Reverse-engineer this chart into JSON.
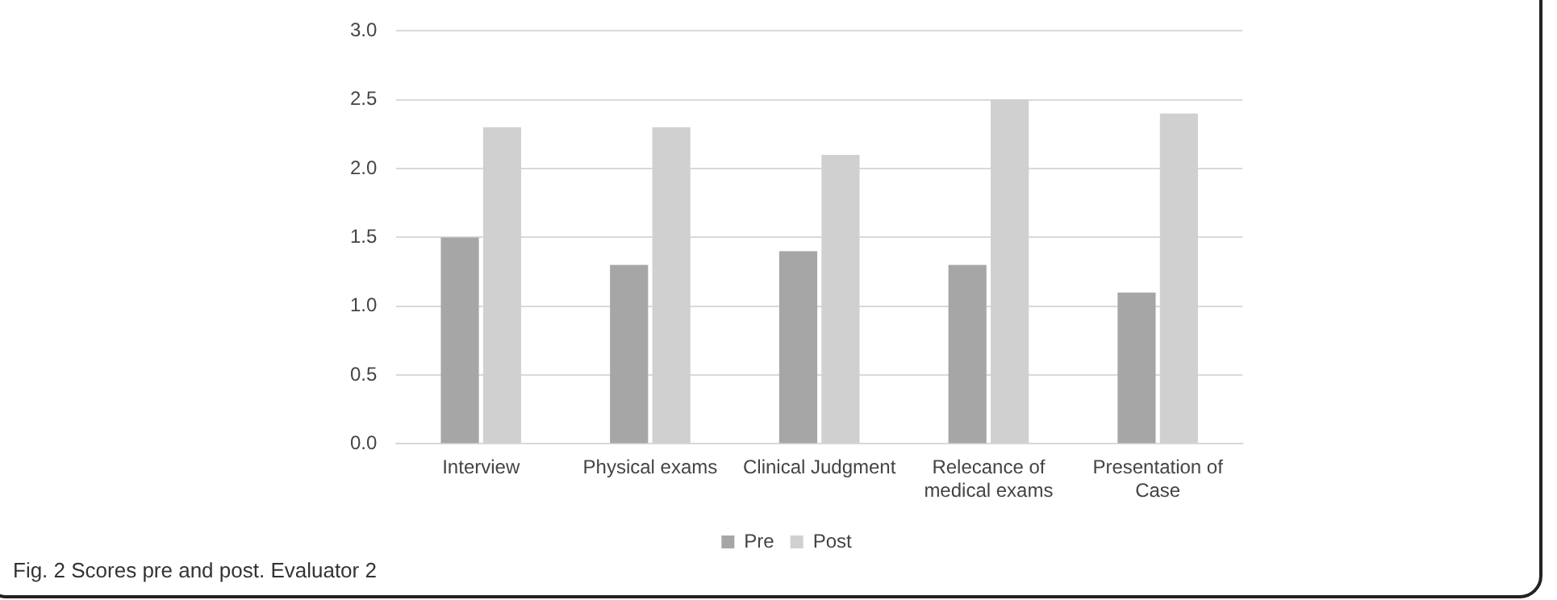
{
  "chart_data": {
    "type": "bar",
    "categories": [
      "Interview",
      "Physical exams",
      "Clinical Judgment",
      "Relecance of medical exams",
      "Presentation of Case"
    ],
    "series": [
      {
        "name": "Pre",
        "color": "#a6a6a6",
        "values": [
          1.5,
          1.3,
          1.4,
          1.3,
          1.1
        ]
      },
      {
        "name": "Post",
        "color": "#d0d0d0",
        "values": [
          2.3,
          2.3,
          2.1,
          2.5,
          2.4
        ]
      }
    ],
    "ylim": [
      0,
      3
    ],
    "yticks": [
      {
        "value": 0,
        "label": "0.0"
      },
      {
        "value": 0.5,
        "label": "0.5"
      },
      {
        "value": 1,
        "label": "1.0"
      },
      {
        "value": 1.5,
        "label": "1.5"
      },
      {
        "value": 2,
        "label": "2.0"
      },
      {
        "value": 2.5,
        "label": "2.5"
      },
      {
        "value": 3,
        "label": "3.0"
      }
    ],
    "grid": "y",
    "legend": "bottom",
    "annotations": [
      "Fig. 2 Scores pre and post. Evaluator 2"
    ]
  }
}
